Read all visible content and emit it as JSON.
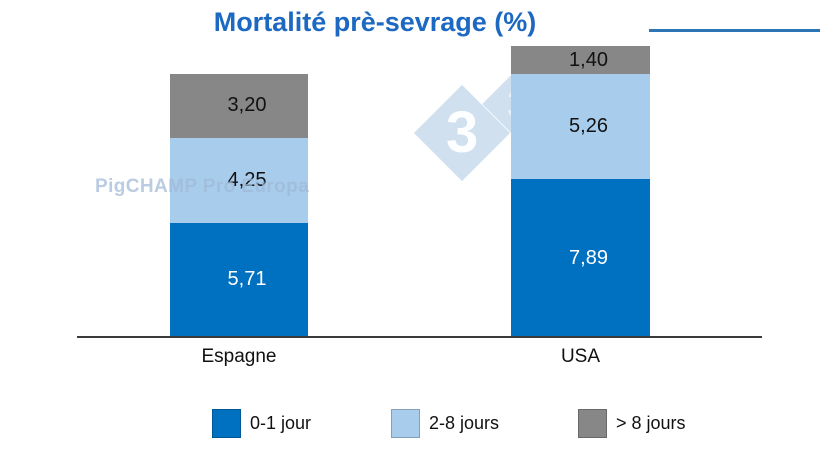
{
  "header": {
    "title": "Mortalité prè-sevrage (%)"
  },
  "colors": {
    "title": "#1d69c1",
    "accent_line": "#2e75b6",
    "axis": "#3a3a3a",
    "series_dark_blue": "#0070c0",
    "series_light_blue": "#a8cdec",
    "series_gray": "#878787"
  },
  "chart_data": {
    "type": "bar",
    "stacked": true,
    "title": "Mortalité prè-sevrage (%)",
    "unit": "%",
    "categories": [
      "Espagne",
      "USA"
    ],
    "series": [
      {
        "name": "0-1 jour",
        "values": [
          5.71,
          7.89
        ],
        "labels": [
          "5,71",
          "7,89"
        ],
        "color": "#0070c0",
        "label_color": "#ffffff"
      },
      {
        "name": "2-8 jours",
        "values": [
          4.25,
          5.26
        ],
        "labels": [
          "4,25",
          "5,26"
        ],
        "color": "#a8cdec",
        "label_color": "#111111"
      },
      {
        "name": "> 8 jours",
        "values": [
          3.2,
          1.4
        ],
        "labels": [
          "3,20",
          "1,40"
        ],
        "color": "#878787",
        "label_color": "#111111"
      }
    ],
    "legend_position": "bottom",
    "axis": {
      "baseline_visible": true,
      "gridlines": false,
      "y_ticks_visible": false
    }
  },
  "watermarks": {
    "pigchamp_text": "PigCHAMP Pro Europa",
    "logo_glyph": "3"
  }
}
